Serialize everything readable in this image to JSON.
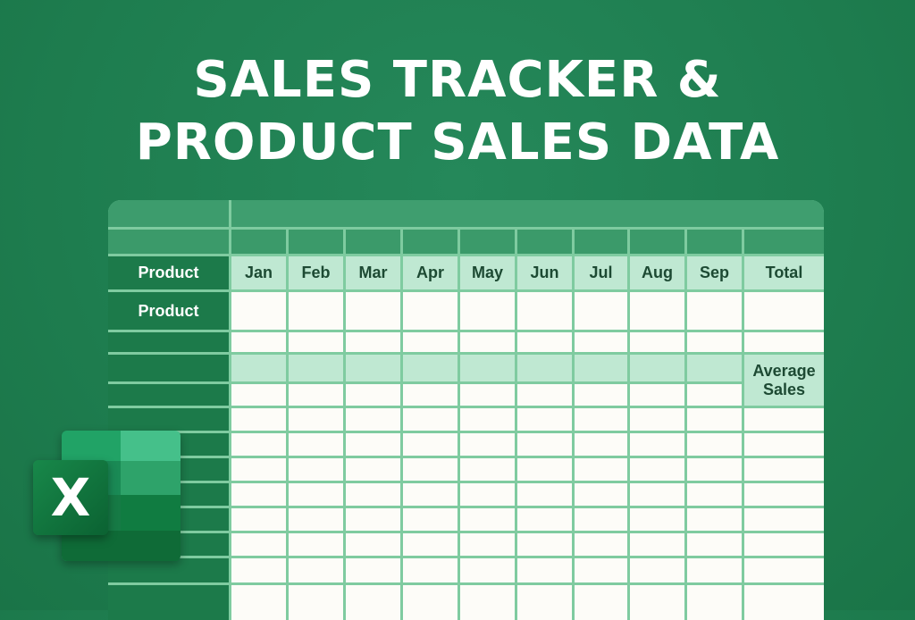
{
  "title": {
    "line1": "SALES TRACKER &",
    "line2": "PRODUCT SALES DATA"
  },
  "table": {
    "row_header_label": "Product",
    "first_row_label": "Product",
    "months": [
      "Jan",
      "Feb",
      "Mar",
      "Apr",
      "May",
      "Jun",
      "Jul",
      "Aug",
      "Sep"
    ],
    "total_label": "Total",
    "average_label": "Average Sales"
  },
  "logo": {
    "letter": "X"
  },
  "colors": {
    "background": "#1e7d4f",
    "row_header": "#1c7a4a",
    "header_light": "#bfe8d2",
    "grid": "#7fcba0",
    "cell": "#fdfcf8"
  }
}
